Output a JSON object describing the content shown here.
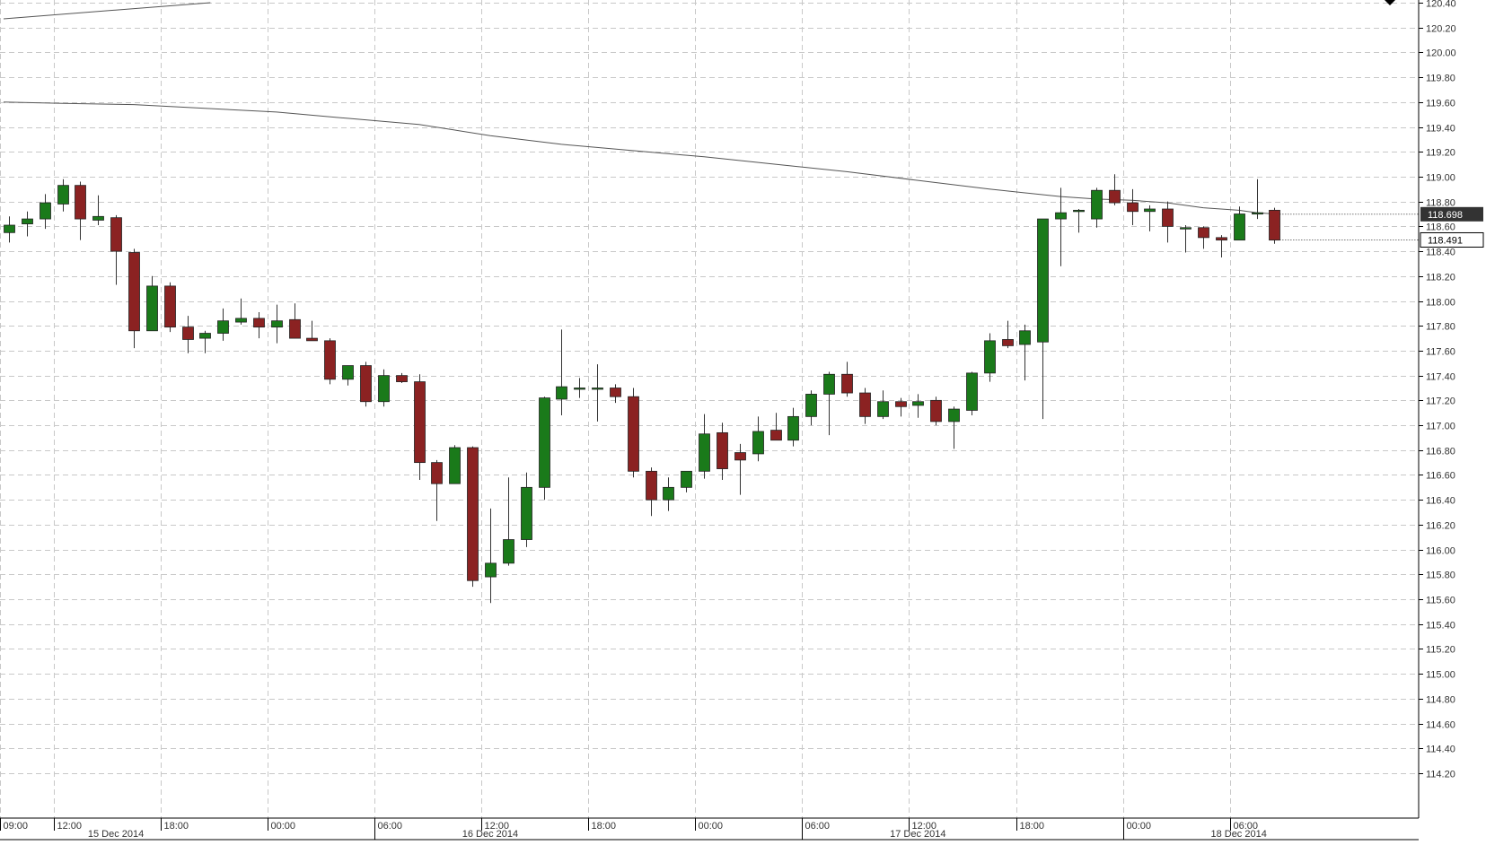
{
  "chart_data": {
    "type": "candlestick",
    "colors": {
      "up": "#1a7a1a",
      "down": "#8b2222",
      "wick": "#333333",
      "grid": "#c8c8c8",
      "ma": "#555555",
      "bid_label_bg": "#333333"
    },
    "ylim": [
      114.2,
      120.4
    ],
    "y_ticks": [
      "120.40",
      "120.20",
      "120.00",
      "119.80",
      "119.60",
      "119.40",
      "119.20",
      "119.00",
      "118.80",
      "118.60",
      "118.40",
      "118.20",
      "118.00",
      "117.80",
      "117.60",
      "117.40",
      "117.20",
      "117.00",
      "116.80",
      "116.60",
      "116.40",
      "116.20",
      "116.00",
      "115.80",
      "115.60",
      "115.40",
      "115.20",
      "115.00",
      "114.80",
      "114.60",
      "114.40",
      "114.20"
    ],
    "x_time_ticks": [
      {
        "label": "09:00",
        "bar": 0
      },
      {
        "label": "12:00",
        "bar": 3
      },
      {
        "label": "18:00",
        "bar": 9
      },
      {
        "label": "00:00",
        "bar": 15
      },
      {
        "label": "06:00",
        "bar": 21
      },
      {
        "label": "12:00",
        "bar": 27
      },
      {
        "label": "18:00",
        "bar": 33
      },
      {
        "label": "00:00",
        "bar": 39
      },
      {
        "label": "06:00",
        "bar": 45
      },
      {
        "label": "12:00",
        "bar": 51
      },
      {
        "label": "18:00",
        "bar": 57
      },
      {
        "label": "00:00",
        "bar": 63
      },
      {
        "label": "06:00",
        "bar": 69
      }
    ],
    "x_date_labels": [
      {
        "label": "15 Dec 2014",
        "bar": 6
      },
      {
        "label": "16 Dec 2014",
        "bar": 27
      },
      {
        "label": "17 Dec 2014",
        "bar": 51
      },
      {
        "label": "18 Dec 2014",
        "bar": 69
      }
    ],
    "price_labels": {
      "upper": "118.698",
      "lower": "118.491"
    },
    "candles": [
      {
        "o": 118.55,
        "h": 118.68,
        "l": 118.47,
        "c": 118.61
      },
      {
        "o": 118.62,
        "h": 118.72,
        "l": 118.52,
        "c": 118.66
      },
      {
        "o": 118.66,
        "h": 118.86,
        "l": 118.58,
        "c": 118.79
      },
      {
        "o": 118.78,
        "h": 118.98,
        "l": 118.72,
        "c": 118.93
      },
      {
        "o": 118.93,
        "h": 118.96,
        "l": 118.49,
        "c": 118.66
      },
      {
        "o": 118.65,
        "h": 118.85,
        "l": 118.61,
        "c": 118.68
      },
      {
        "o": 118.67,
        "h": 118.69,
        "l": 118.13,
        "c": 118.4
      },
      {
        "o": 118.39,
        "h": 118.42,
        "l": 117.62,
        "c": 117.76
      },
      {
        "o": 117.76,
        "h": 118.2,
        "l": 117.76,
        "c": 118.12
      },
      {
        "o": 118.12,
        "h": 118.15,
        "l": 117.75,
        "c": 117.79
      },
      {
        "o": 117.79,
        "h": 117.88,
        "l": 117.58,
        "c": 117.69
      },
      {
        "o": 117.7,
        "h": 117.76,
        "l": 117.58,
        "c": 117.74
      },
      {
        "o": 117.74,
        "h": 117.94,
        "l": 117.68,
        "c": 117.84
      },
      {
        "o": 117.83,
        "h": 118.02,
        "l": 117.81,
        "c": 117.86
      },
      {
        "o": 117.86,
        "h": 117.91,
        "l": 117.7,
        "c": 117.79
      },
      {
        "o": 117.79,
        "h": 117.97,
        "l": 117.66,
        "c": 117.84
      },
      {
        "o": 117.85,
        "h": 117.98,
        "l": 117.7,
        "c": 117.7
      },
      {
        "o": 117.7,
        "h": 117.84,
        "l": 117.68,
        "c": 117.68
      },
      {
        "o": 117.68,
        "h": 117.7,
        "l": 117.33,
        "c": 117.37
      },
      {
        "o": 117.37,
        "h": 117.48,
        "l": 117.32,
        "c": 117.48
      },
      {
        "o": 117.48,
        "h": 117.51,
        "l": 117.15,
        "c": 117.19
      },
      {
        "o": 117.19,
        "h": 117.45,
        "l": 117.15,
        "c": 117.4
      },
      {
        "o": 117.4,
        "h": 117.42,
        "l": 117.34,
        "c": 117.35
      },
      {
        "o": 117.35,
        "h": 117.41,
        "l": 116.56,
        "c": 116.7
      },
      {
        "o": 116.7,
        "h": 116.72,
        "l": 116.23,
        "c": 116.53
      },
      {
        "o": 116.53,
        "h": 116.84,
        "l": 116.53,
        "c": 116.82
      },
      {
        "o": 116.82,
        "h": 116.83,
        "l": 115.7,
        "c": 115.75
      },
      {
        "o": 115.78,
        "h": 116.33,
        "l": 115.57,
        "c": 115.89
      },
      {
        "o": 115.89,
        "h": 116.58,
        "l": 115.87,
        "c": 116.08
      },
      {
        "o": 116.08,
        "h": 116.62,
        "l": 116.02,
        "c": 116.5
      },
      {
        "o": 116.5,
        "h": 117.23,
        "l": 116.4,
        "c": 117.22
      },
      {
        "o": 117.21,
        "h": 117.77,
        "l": 117.08,
        "c": 117.31
      },
      {
        "o": 117.3,
        "h": 117.38,
        "l": 117.22,
        "c": 117.3
      },
      {
        "o": 117.3,
        "h": 117.49,
        "l": 117.03,
        "c": 117.3
      },
      {
        "o": 117.3,
        "h": 117.33,
        "l": 117.18,
        "c": 117.23
      },
      {
        "o": 117.23,
        "h": 117.3,
        "l": 116.58,
        "c": 116.63
      },
      {
        "o": 116.63,
        "h": 116.66,
        "l": 116.27,
        "c": 116.4
      },
      {
        "o": 116.4,
        "h": 116.58,
        "l": 116.31,
        "c": 116.5
      },
      {
        "o": 116.5,
        "h": 116.63,
        "l": 116.46,
        "c": 116.63
      },
      {
        "o": 116.63,
        "h": 117.09,
        "l": 116.57,
        "c": 116.93
      },
      {
        "o": 116.94,
        "h": 117.02,
        "l": 116.56,
        "c": 116.65
      },
      {
        "o": 116.78,
        "h": 116.85,
        "l": 116.44,
        "c": 116.72
      },
      {
        "o": 116.77,
        "h": 117.07,
        "l": 116.71,
        "c": 116.95
      },
      {
        "o": 116.96,
        "h": 117.1,
        "l": 116.92,
        "c": 116.88
      },
      {
        "o": 116.88,
        "h": 117.14,
        "l": 116.83,
        "c": 117.07
      },
      {
        "o": 117.07,
        "h": 117.28,
        "l": 117.0,
        "c": 117.25
      },
      {
        "o": 117.25,
        "h": 117.43,
        "l": 116.92,
        "c": 117.41
      },
      {
        "o": 117.41,
        "h": 117.51,
        "l": 117.23,
        "c": 117.26
      },
      {
        "o": 117.26,
        "h": 117.3,
        "l": 117.01,
        "c": 117.07
      },
      {
        "o": 117.07,
        "h": 117.28,
        "l": 117.05,
        "c": 117.19
      },
      {
        "o": 117.19,
        "h": 117.22,
        "l": 117.07,
        "c": 117.15
      },
      {
        "o": 117.16,
        "h": 117.25,
        "l": 117.06,
        "c": 117.19
      },
      {
        "o": 117.2,
        "h": 117.23,
        "l": 117.0,
        "c": 117.03
      },
      {
        "o": 117.03,
        "h": 117.15,
        "l": 116.81,
        "c": 117.13
      },
      {
        "o": 117.12,
        "h": 117.43,
        "l": 117.08,
        "c": 117.42
      },
      {
        "o": 117.42,
        "h": 117.74,
        "l": 117.35,
        "c": 117.68
      },
      {
        "o": 117.69,
        "h": 117.84,
        "l": 117.62,
        "c": 117.64
      },
      {
        "o": 117.65,
        "h": 117.81,
        "l": 117.36,
        "c": 117.76
      },
      {
        "o": 117.67,
        "h": 118.66,
        "l": 117.05,
        "c": 118.66
      },
      {
        "o": 118.66,
        "h": 118.91,
        "l": 118.28,
        "c": 118.71
      },
      {
        "o": 118.72,
        "h": 118.74,
        "l": 118.55,
        "c": 118.73
      },
      {
        "o": 118.66,
        "h": 118.91,
        "l": 118.59,
        "c": 118.89
      },
      {
        "o": 118.89,
        "h": 119.02,
        "l": 118.77,
        "c": 118.79
      },
      {
        "o": 118.79,
        "h": 118.9,
        "l": 118.61,
        "c": 118.72
      },
      {
        "o": 118.72,
        "h": 118.77,
        "l": 118.56,
        "c": 118.74
      },
      {
        "o": 118.74,
        "h": 118.8,
        "l": 118.47,
        "c": 118.6
      },
      {
        "o": 118.59,
        "h": 118.61,
        "l": 118.39,
        "c": 118.59
      },
      {
        "o": 118.59,
        "h": 118.6,
        "l": 118.42,
        "c": 118.51
      },
      {
        "o": 118.51,
        "h": 118.53,
        "l": 118.35,
        "c": 118.49
      },
      {
        "o": 118.49,
        "h": 118.76,
        "l": 118.49,
        "c": 118.7
      },
      {
        "o": 118.7,
        "h": 118.98,
        "l": 118.66,
        "c": 118.71
      },
      {
        "o": 118.73,
        "h": 118.75,
        "l": 118.46,
        "c": 118.49
      }
    ],
    "moving_averages": [
      {
        "points": [
          [
            -0.3,
            120.27
          ],
          [
            11.3,
            120.4
          ]
        ]
      },
      {
        "points": [
          [
            -0.3,
            119.6
          ],
          [
            3,
            119.59
          ],
          [
            7,
            119.58
          ],
          [
            11,
            119.55
          ],
          [
            15,
            119.52
          ],
          [
            19,
            119.47
          ],
          [
            23,
            119.42
          ],
          [
            27,
            119.33
          ],
          [
            31,
            119.26
          ],
          [
            35,
            119.21
          ],
          [
            39,
            119.16
          ],
          [
            43,
            119.1
          ],
          [
            47,
            119.04
          ],
          [
            51,
            118.97
          ],
          [
            55,
            118.9
          ],
          [
            59,
            118.84
          ],
          [
            61,
            118.82
          ],
          [
            63,
            118.81
          ],
          [
            65,
            118.79
          ],
          [
            67,
            118.75
          ],
          [
            69,
            118.73
          ],
          [
            70,
            118.71
          ],
          [
            71,
            118.7
          ]
        ]
      }
    ]
  }
}
